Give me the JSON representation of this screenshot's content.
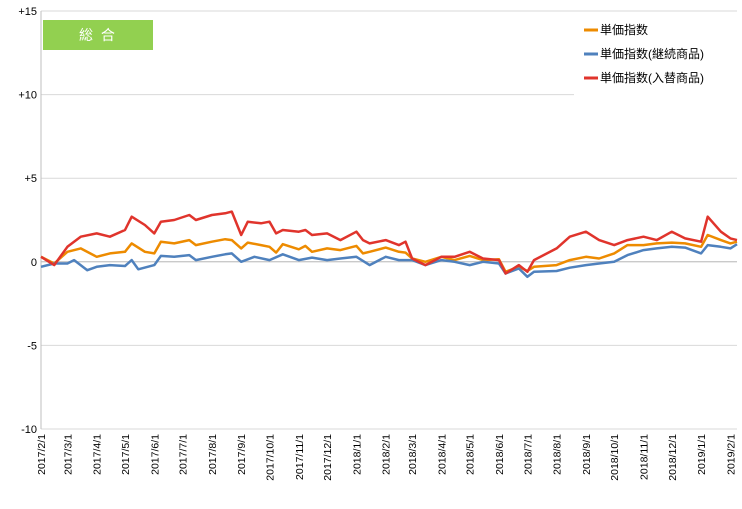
{
  "chart_data": {
    "type": "line",
    "title": "総 合",
    "badge_color": "#92d050",
    "ylim": [
      -10,
      15
    ],
    "y_ticks": [
      "+15",
      "+10",
      "+5",
      "0",
      "-5",
      "-10"
    ],
    "y_tick_values": [
      15,
      10,
      5,
      0,
      -5,
      -10
    ],
    "x_range": [
      "2017/2/1",
      "2019/2/8"
    ],
    "x_ticks": [
      "2017/2/1",
      "2017/3/1",
      "2017/4/1",
      "2017/5/1",
      "2017/6/1",
      "2017/7/1",
      "2017/8/1",
      "2017/9/1",
      "2017/10/1",
      "2017/11/1",
      "2017/12/1",
      "2018/1/1",
      "2018/2/1",
      "2018/3/1",
      "2018/4/1",
      "2018/5/1",
      "2018/6/1",
      "2018/7/1",
      "2018/8/1",
      "2018/9/1",
      "2018/10/1",
      "2018/11/1",
      "2018/12/1",
      "2019/1/1",
      "2019/2/1"
    ],
    "grid": "horizontal",
    "legend_position": "top-right",
    "series": [
      {
        "name": "単価指数",
        "color": "#ed8b00",
        "points": [
          [
            "2017/2/1",
            0.3
          ],
          [
            "2017/2/15",
            -0.1
          ],
          [
            "2017/3/1",
            0.6
          ],
          [
            "2017/3/15",
            0.8
          ],
          [
            "2017/4/1",
            0.3
          ],
          [
            "2017/4/15",
            0.5
          ],
          [
            "2017/5/1",
            0.6
          ],
          [
            "2017/5/8",
            1.1
          ],
          [
            "2017/5/22",
            0.6
          ],
          [
            "2017/6/1",
            0.5
          ],
          [
            "2017/6/8",
            1.2
          ],
          [
            "2017/6/22",
            1.1
          ],
          [
            "2017/7/8",
            1.3
          ],
          [
            "2017/7/15",
            1.0
          ],
          [
            "2017/8/1",
            1.2
          ],
          [
            "2017/8/15",
            1.35
          ],
          [
            "2017/8/22",
            1.3
          ],
          [
            "2017/9/1",
            0.8
          ],
          [
            "2017/9/8",
            1.15
          ],
          [
            "2017/9/22",
            1.0
          ],
          [
            "2017/10/1",
            0.9
          ],
          [
            "2017/10/8",
            0.55
          ],
          [
            "2017/10/15",
            1.05
          ],
          [
            "2017/11/1",
            0.75
          ],
          [
            "2017/11/8",
            0.95
          ],
          [
            "2017/11/15",
            0.6
          ],
          [
            "2017/12/1",
            0.8
          ],
          [
            "2017/12/15",
            0.7
          ],
          [
            "2018/1/1",
            0.95
          ],
          [
            "2018/1/8",
            0.5
          ],
          [
            "2018/1/15",
            0.6
          ],
          [
            "2018/2/1",
            0.85
          ],
          [
            "2018/2/15",
            0.6
          ],
          [
            "2018/2/22",
            0.55
          ],
          [
            "2018/3/1",
            0.2
          ],
          [
            "2018/3/15",
            0.0
          ],
          [
            "2018/4/1",
            0.3
          ],
          [
            "2018/4/15",
            0.1
          ],
          [
            "2018/5/1",
            0.35
          ],
          [
            "2018/5/15",
            0.1
          ],
          [
            "2018/6/1",
            0.15
          ],
          [
            "2018/6/8",
            -0.6
          ],
          [
            "2018/6/22",
            -0.3
          ],
          [
            "2018/7/1",
            -0.55
          ],
          [
            "2018/7/8",
            -0.3
          ],
          [
            "2018/8/1",
            -0.2
          ],
          [
            "2018/8/15",
            0.1
          ],
          [
            "2018/9/1",
            0.3
          ],
          [
            "2018/9/15",
            0.2
          ],
          [
            "2018/10/1",
            0.5
          ],
          [
            "2018/10/15",
            1.0
          ],
          [
            "2018/11/1",
            1.0
          ],
          [
            "2018/11/15",
            1.1
          ],
          [
            "2018/12/1",
            1.15
          ],
          [
            "2018/12/15",
            1.1
          ],
          [
            "2019/1/1",
            0.9
          ],
          [
            "2019/1/8",
            1.6
          ],
          [
            "2019/1/22",
            1.3
          ],
          [
            "2019/2/1",
            1.1
          ],
          [
            "2019/2/8",
            1.2
          ]
        ]
      },
      {
        "name": "単価指数(継続商品)",
        "color": "#4f81bd",
        "points": [
          [
            "2017/2/1",
            -0.3
          ],
          [
            "2017/2/15",
            -0.1
          ],
          [
            "2017/3/1",
            -0.1
          ],
          [
            "2017/3/8",
            0.1
          ],
          [
            "2017/3/22",
            -0.5
          ],
          [
            "2017/4/1",
            -0.3
          ],
          [
            "2017/4/15",
            -0.2
          ],
          [
            "2017/5/1",
            -0.25
          ],
          [
            "2017/5/8",
            0.1
          ],
          [
            "2017/5/15",
            -0.45
          ],
          [
            "2017/6/1",
            -0.2
          ],
          [
            "2017/6/8",
            0.35
          ],
          [
            "2017/6/22",
            0.3
          ],
          [
            "2017/7/8",
            0.4
          ],
          [
            "2017/7/15",
            0.1
          ],
          [
            "2017/8/1",
            0.3
          ],
          [
            "2017/8/15",
            0.45
          ],
          [
            "2017/8/22",
            0.5
          ],
          [
            "2017/9/1",
            0.0
          ],
          [
            "2017/9/15",
            0.3
          ],
          [
            "2017/10/1",
            0.1
          ],
          [
            "2017/10/15",
            0.45
          ],
          [
            "2017/11/1",
            0.1
          ],
          [
            "2017/11/15",
            0.25
          ],
          [
            "2017/12/1",
            0.1
          ],
          [
            "2017/12/15",
            0.2
          ],
          [
            "2018/1/1",
            0.3
          ],
          [
            "2018/1/15",
            -0.2
          ],
          [
            "2018/2/1",
            0.3
          ],
          [
            "2018/2/15",
            0.1
          ],
          [
            "2018/3/1",
            0.1
          ],
          [
            "2018/3/15",
            -0.2
          ],
          [
            "2018/4/1",
            0.1
          ],
          [
            "2018/4/15",
            0.0
          ],
          [
            "2018/5/1",
            -0.2
          ],
          [
            "2018/5/15",
            0.0
          ],
          [
            "2018/6/1",
            -0.1
          ],
          [
            "2018/6/8",
            -0.7
          ],
          [
            "2018/6/22",
            -0.4
          ],
          [
            "2018/7/1",
            -0.9
          ],
          [
            "2018/7/8",
            -0.6
          ],
          [
            "2018/8/1",
            -0.55
          ],
          [
            "2018/8/15",
            -0.35
          ],
          [
            "2018/9/1",
            -0.2
          ],
          [
            "2018/9/15",
            -0.1
          ],
          [
            "2018/10/1",
            0.0
          ],
          [
            "2018/10/15",
            0.4
          ],
          [
            "2018/11/1",
            0.7
          ],
          [
            "2018/11/15",
            0.8
          ],
          [
            "2018/12/1",
            0.9
          ],
          [
            "2018/12/15",
            0.85
          ],
          [
            "2019/1/1",
            0.5
          ],
          [
            "2019/1/8",
            1.0
          ],
          [
            "2019/1/22",
            0.9
          ],
          [
            "2019/2/1",
            0.8
          ],
          [
            "2019/2/8",
            1.05
          ]
        ]
      },
      {
        "name": "単価指数(入替商品)",
        "color": "#e0342c",
        "points": [
          [
            "2017/2/1",
            0.3
          ],
          [
            "2017/2/15",
            -0.2
          ],
          [
            "2017/3/1",
            0.9
          ],
          [
            "2017/3/15",
            1.5
          ],
          [
            "2017/4/1",
            1.7
          ],
          [
            "2017/4/15",
            1.5
          ],
          [
            "2017/5/1",
            1.9
          ],
          [
            "2017/5/8",
            2.7
          ],
          [
            "2017/5/22",
            2.2
          ],
          [
            "2017/6/1",
            1.7
          ],
          [
            "2017/6/8",
            2.4
          ],
          [
            "2017/6/22",
            2.5
          ],
          [
            "2017/7/8",
            2.8
          ],
          [
            "2017/7/15",
            2.5
          ],
          [
            "2017/8/1",
            2.8
          ],
          [
            "2017/8/15",
            2.9
          ],
          [
            "2017/8/22",
            3.0
          ],
          [
            "2017/9/1",
            1.6
          ],
          [
            "2017/9/8",
            2.4
          ],
          [
            "2017/9/22",
            2.3
          ],
          [
            "2017/10/1",
            2.4
          ],
          [
            "2017/10/8",
            1.7
          ],
          [
            "2017/10/15",
            1.9
          ],
          [
            "2017/11/1",
            1.8
          ],
          [
            "2017/11/8",
            1.9
          ],
          [
            "2017/11/15",
            1.6
          ],
          [
            "2017/12/1",
            1.7
          ],
          [
            "2017/12/15",
            1.3
          ],
          [
            "2018/1/1",
            1.8
          ],
          [
            "2018/1/8",
            1.3
          ],
          [
            "2018/1/15",
            1.1
          ],
          [
            "2018/2/1",
            1.3
          ],
          [
            "2018/2/15",
            1.0
          ],
          [
            "2018/2/22",
            1.2
          ],
          [
            "2018/3/1",
            0.2
          ],
          [
            "2018/3/15",
            -0.2
          ],
          [
            "2018/4/1",
            0.3
          ],
          [
            "2018/4/15",
            0.3
          ],
          [
            "2018/5/1",
            0.6
          ],
          [
            "2018/5/15",
            0.2
          ],
          [
            "2018/6/1",
            0.1
          ],
          [
            "2018/6/8",
            -0.7
          ],
          [
            "2018/6/22",
            -0.2
          ],
          [
            "2018/7/1",
            -0.6
          ],
          [
            "2018/7/8",
            0.1
          ],
          [
            "2018/8/1",
            0.8
          ],
          [
            "2018/8/15",
            1.5
          ],
          [
            "2018/9/1",
            1.8
          ],
          [
            "2018/9/15",
            1.3
          ],
          [
            "2018/10/1",
            1.0
          ],
          [
            "2018/10/15",
            1.3
          ],
          [
            "2018/11/1",
            1.5
          ],
          [
            "2018/11/15",
            1.3
          ],
          [
            "2018/12/1",
            1.8
          ],
          [
            "2018/12/15",
            1.4
          ],
          [
            "2019/1/1",
            1.2
          ],
          [
            "2019/1/8",
            2.7
          ],
          [
            "2019/1/22",
            1.8
          ],
          [
            "2019/2/1",
            1.4
          ],
          [
            "2019/2/8",
            1.3
          ]
        ]
      }
    ]
  }
}
